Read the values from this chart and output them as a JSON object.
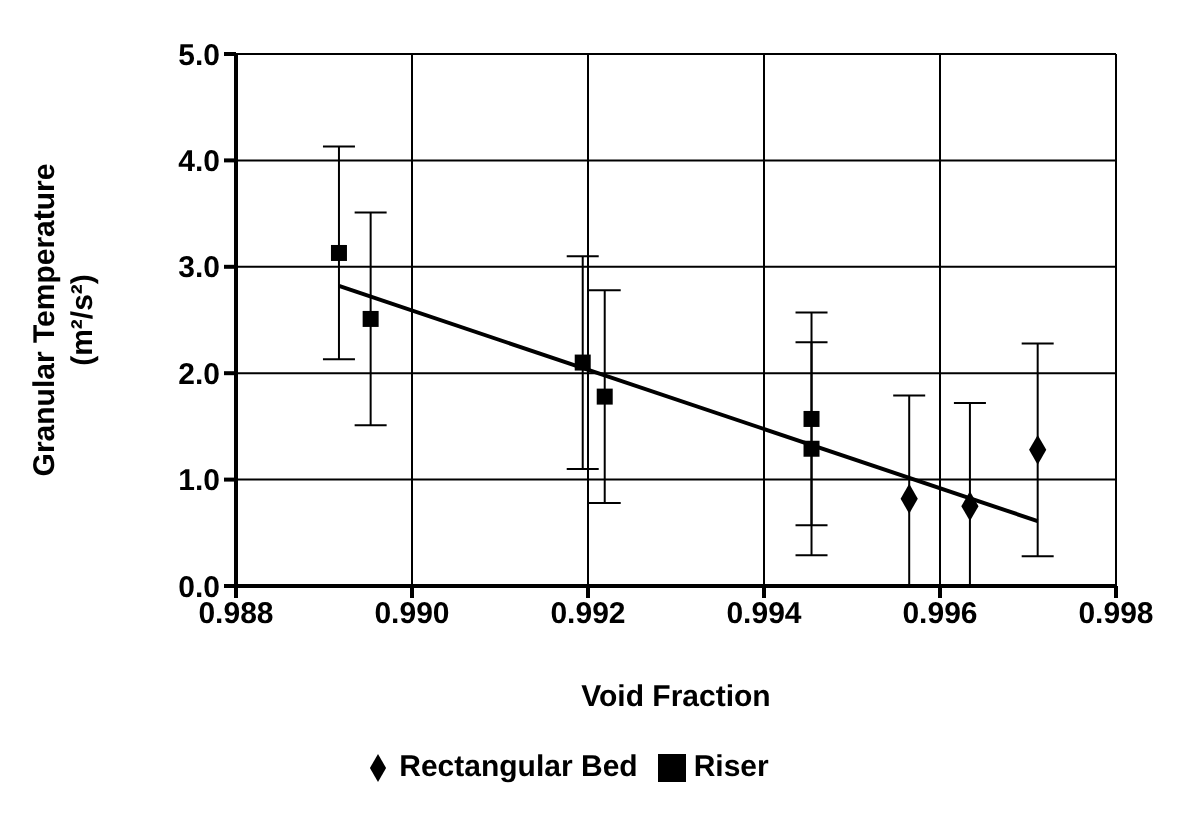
{
  "chart_data": {
    "type": "scatter",
    "xlabel": "Void Fraction",
    "ylabel": "Granular Temperature (m²/s²)",
    "xlim": [
      0.988,
      0.998
    ],
    "ylim": [
      0,
      5
    ],
    "xticks": [
      {
        "value": 0.988,
        "label": "0.988"
      },
      {
        "value": 0.99,
        "label": "0.990"
      },
      {
        "value": 0.992,
        "label": "0.992"
      },
      {
        "value": 0.994,
        "label": "0.994"
      },
      {
        "value": 0.996,
        "label": "0.996"
      },
      {
        "value": 0.998,
        "label": "0.998"
      }
    ],
    "yticks": [
      {
        "value": 0,
        "label": "0.0"
      },
      {
        "value": 1,
        "label": "1.0"
      },
      {
        "value": 2,
        "label": "2.0"
      },
      {
        "value": 3,
        "label": "3.0"
      },
      {
        "value": 4,
        "label": "4.0"
      },
      {
        "value": 5,
        "label": "5.0"
      }
    ],
    "grid": true,
    "legend": "bottom",
    "series": [
      {
        "name": "Rectangular Bed",
        "color": "#000000",
        "marker": "diamond",
        "x": [
          0.99565,
          0.99634,
          0.99711
        ],
        "values": [
          0.82,
          0.75,
          1.28
        ],
        "errors": [
          [
            0,
            1.79
          ],
          [
            0,
            1.72
          ],
          1.0
        ]
      },
      {
        "name": "Riser",
        "color": "#000000",
        "marker": "square",
        "x": [
          0.98917,
          0.98953,
          0.99194,
          0.99219,
          0.99454,
          0.99454
        ],
        "values": [
          3.13,
          2.51,
          2.1,
          1.78,
          1.57,
          1.29
        ],
        "errors": [
          1.0,
          1.0,
          1.0,
          1.0,
          1.0,
          1.0
        ]
      },
      {
        "type": "line",
        "color": "#000000",
        "x": [
          0.98917,
          0.99711
        ],
        "values": [
          2.82,
          0.61
        ]
      }
    ]
  }
}
